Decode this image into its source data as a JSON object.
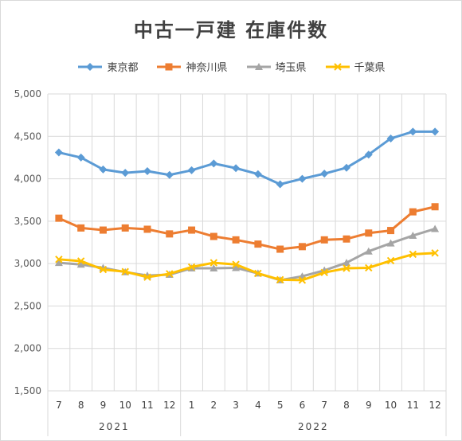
{
  "chart_data": {
    "type": "line",
    "title": "中古一戸建 在庫件数",
    "categories": [
      "7",
      "8",
      "9",
      "10",
      "11",
      "12",
      "1",
      "2",
      "3",
      "4",
      "5",
      "6",
      "7",
      "8",
      "9",
      "10",
      "11",
      "12"
    ],
    "year_groups": [
      {
        "label": "2021",
        "start": 0,
        "end": 5
      },
      {
        "label": "2022",
        "start": 6,
        "end": 17
      }
    ],
    "ylim": [
      1500,
      5000
    ],
    "yticks": [
      "1,500",
      "2,000",
      "2,500",
      "3,000",
      "3,500",
      "4,000",
      "4,500",
      "5,000"
    ],
    "ytick_values": [
      1500,
      2000,
      2500,
      3000,
      3500,
      4000,
      4500,
      5000
    ],
    "legend_position": "top",
    "grid": true,
    "series": [
      {
        "name": "東京都",
        "color": "#5b9bd5",
        "marker": "diamond",
        "values": [
          4310,
          4250,
          4110,
          4070,
          4090,
          4045,
          4100,
          4180,
          4125,
          4055,
          3935,
          4000,
          4060,
          4130,
          4285,
          4475,
          4555,
          4555
        ]
      },
      {
        "name": "神奈川県",
        "color": "#ed7d31",
        "marker": "square",
        "values": [
          3535,
          3420,
          3395,
          3420,
          3405,
          3350,
          3395,
          3320,
          3280,
          3230,
          3170,
          3200,
          3280,
          3290,
          3360,
          3390,
          3610,
          3670
        ]
      },
      {
        "name": "埼玉県",
        "color": "#a5a5a5",
        "marker": "triangle",
        "values": [
          3010,
          2990,
          2950,
          2900,
          2860,
          2870,
          2945,
          2945,
          2950,
          2885,
          2805,
          2850,
          2920,
          3010,
          3145,
          3240,
          3330,
          3410
        ]
      },
      {
        "name": "千葉県",
        "color": "#ffc000",
        "marker": "x",
        "values": [
          3050,
          3030,
          2930,
          2905,
          2840,
          2880,
          2960,
          3010,
          2990,
          2885,
          2810,
          2805,
          2895,
          2945,
          2950,
          3035,
          3110,
          3125
        ]
      }
    ]
  }
}
